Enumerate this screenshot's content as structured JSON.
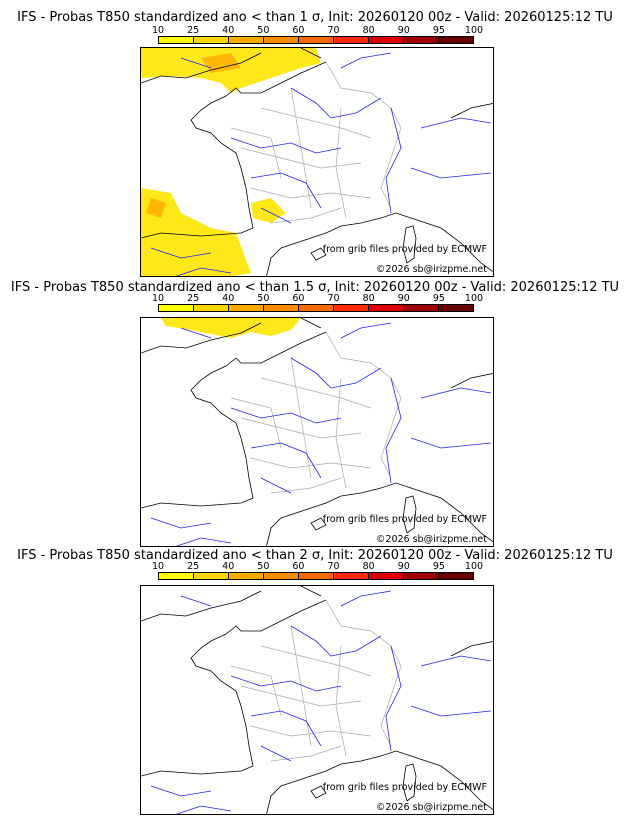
{
  "colorbar": {
    "labels": [
      "10",
      "25",
      "40",
      "50",
      "60",
      "70",
      "80",
      "90",
      "95",
      "100"
    ],
    "colors": [
      "#ffff00",
      "#ffd700",
      "#ffaa00",
      "#ff8c00",
      "#ff6a00",
      "#ff2a00",
      "#dd0000",
      "#a00000",
      "#660000"
    ]
  },
  "panels": [
    {
      "title": "IFS - Probas T850  standardized ano < than 1 σ, Init: 20260120 00z - Valid: 20260125:12 TU",
      "credit1": "from grib files provided by ECMWF",
      "credit2": "©2026 sb@irizpme.net"
    },
    {
      "title": "IFS - Probas T850  standardized ano < than 1.5 σ, Init: 20260120 00z - Valid: 20260125:12 TU",
      "credit1": "from grib files provided by ECMWF",
      "credit2": "©2026 sb@irizpme.net"
    },
    {
      "title": "IFS - Probas T850  standardized ano < than 2 σ, Init: 20260120 00z - Valid: 20260125:12 TU",
      "credit1": "from grib files provided by ECMWF",
      "credit2": "©2026 sb@irizpme.net"
    }
  ]
}
